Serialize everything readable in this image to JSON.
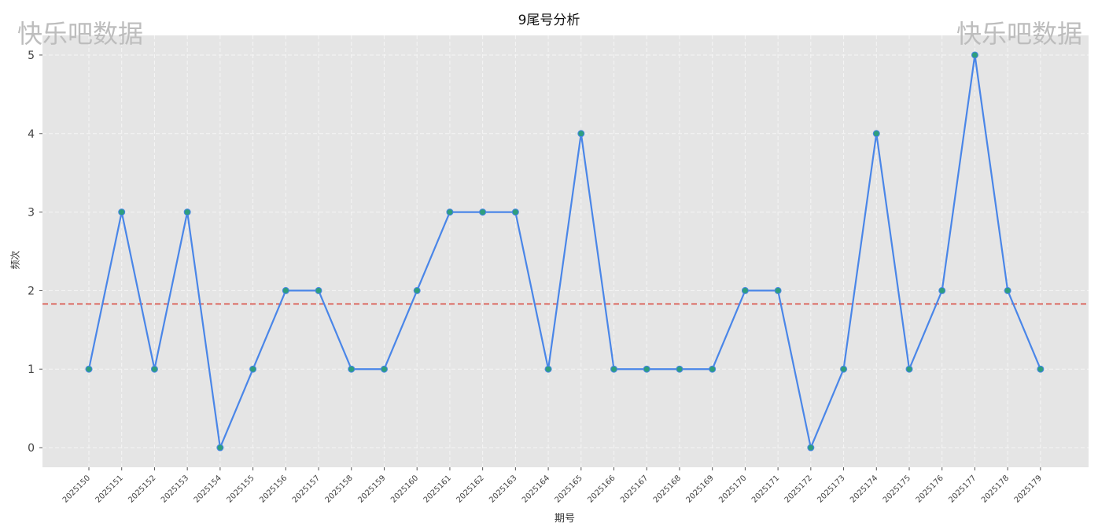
{
  "watermark": {
    "left": "快乐吧数据",
    "right": "快乐吧数据"
  },
  "chart_data": {
    "type": "line",
    "title": "9尾号分析",
    "xlabel": "期号",
    "ylabel": "频次",
    "categories": [
      "2025150",
      "2025151",
      "2025152",
      "2025153",
      "2025154",
      "2025155",
      "2025156",
      "2025157",
      "2025158",
      "2025159",
      "2025160",
      "2025161",
      "2025162",
      "2025163",
      "2025164",
      "2025165",
      "2025166",
      "2025167",
      "2025168",
      "2025169",
      "2025170",
      "2025171",
      "2025172",
      "2025173",
      "2025174",
      "2025175",
      "2025176",
      "2025177",
      "2025178",
      "2025179"
    ],
    "series": [
      {
        "values": [
          1,
          3,
          1,
          3,
          0,
          1,
          2,
          2,
          1,
          1,
          2,
          3,
          3,
          3,
          1,
          4,
          1,
          1,
          1,
          1,
          2,
          2,
          0,
          1,
          4,
          1,
          2,
          5,
          2,
          1
        ],
        "color": "#4a86e8",
        "marker_color": "#2e9e7e"
      }
    ],
    "mean_line": {
      "value": 1.83,
      "color": "#d9443a",
      "style": "dashed"
    },
    "ylim": [
      -0.25,
      5.25
    ],
    "yticks": [
      0,
      1,
      2,
      3,
      4,
      5
    ],
    "grid": true,
    "background": "#e5e5e5"
  }
}
